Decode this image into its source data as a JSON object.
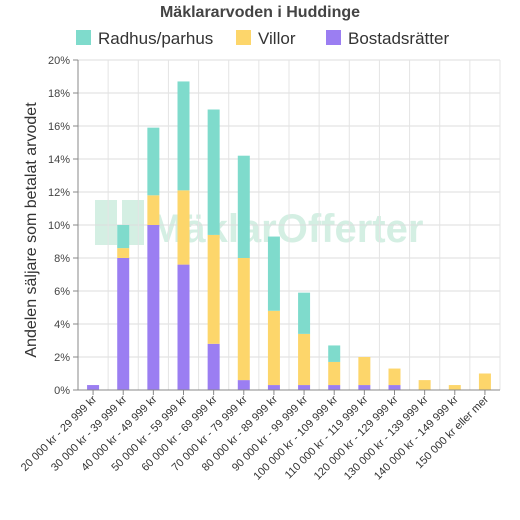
{
  "chart_data": {
    "type": "bar",
    "stacked": true,
    "title": "Mäklararvoden i Huddinge",
    "ylabel": "Andelen säljare som betalat arvodet",
    "xlabel": "",
    "ylim": [
      0,
      20
    ],
    "yticks": [
      "0%",
      "2%",
      "4%",
      "6%",
      "8%",
      "10%",
      "12%",
      "14%",
      "16%",
      "18%",
      "20%"
    ],
    "grid": true,
    "legend_position": "top",
    "categories": [
      "20 000 kr - 29 999 kr",
      "30 000 kr - 39 999 kr",
      "40 000 kr - 49 999 kr",
      "50 000 kr - 59 999 kr",
      "60 000 kr - 69 999 kr",
      "70 000 kr - 79 999 kr",
      "80 000 kr - 89 999 kr",
      "90 000 kr - 99 999 kr",
      "100 000 kr - 109 999 kr",
      "110 000 kr - 119 999 kr",
      "120 000 kr - 129 999 kr",
      "130 000 kr - 139 999 kr",
      "140 000 kr - 149 999 kr",
      "150 000 kr eller mer"
    ],
    "series": [
      {
        "name": "Bostadsrätter",
        "color": "#9b7ef2",
        "values": [
          0.3,
          8.0,
          10.0,
          7.6,
          2.8,
          0.6,
          0.3,
          0.3,
          0.3,
          0.3,
          0.3,
          0.0,
          0.0,
          0.0
        ]
      },
      {
        "name": "Villor",
        "color": "#fdd66b",
        "values": [
          0.0,
          0.6,
          1.8,
          4.5,
          6.6,
          7.4,
          4.5,
          3.1,
          1.4,
          1.7,
          1.0,
          0.6,
          0.3,
          1.0
        ]
      },
      {
        "name": "Radhus/parhus",
        "color": "#7fdbcc",
        "values": [
          0.0,
          1.4,
          4.1,
          6.6,
          7.6,
          6.2,
          4.5,
          2.5,
          1.0,
          0.0,
          0.0,
          0.0,
          0.0,
          0.0
        ]
      }
    ],
    "legend_order": [
      "Radhus/parhus",
      "Villor",
      "Bostadsrätter"
    ]
  },
  "watermark": {
    "text": "MäklarOfferter"
  }
}
